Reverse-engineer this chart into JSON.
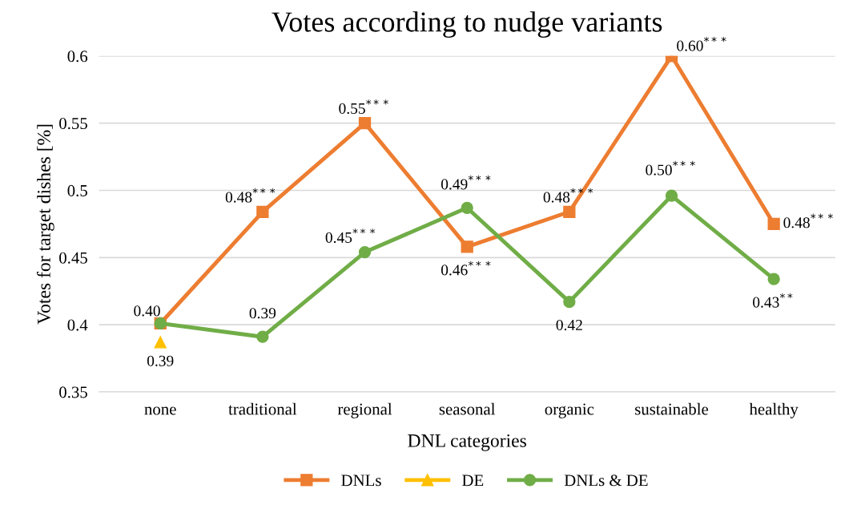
{
  "chart_data": {
    "type": "line",
    "title": "Votes according to nudge variants",
    "xlabel": "DNL categories",
    "ylabel": "Votes for target dishes [%]",
    "categories": [
      "none",
      "traditional",
      "regional",
      "seasonal",
      "organic",
      "sustainable",
      "healthy"
    ],
    "series": [
      {
        "name": "DNLs",
        "color": "#ed7d31",
        "marker": "square",
        "values": [
          0.401,
          0.484,
          0.55,
          0.458,
          0.484,
          0.6,
          0.475
        ],
        "value_labels": [
          "0.40",
          "0.48$^{***}$",
          "0.55$^{***}$",
          "0.46$^{***}$",
          "0.48$^{***}$",
          "0.60$^{***}$",
          "0.48$^{***}$"
        ]
      },
      {
        "name": "DE",
        "color": "#ffc000",
        "marker": "triangle",
        "values": [
          0.387,
          null,
          null,
          null,
          null,
          null,
          null
        ],
        "value_labels": [
          "0.39",
          null,
          null,
          null,
          null,
          null,
          null
        ]
      },
      {
        "name": "DNLs & DE",
        "color": "#70ad47",
        "marker": "circle",
        "values": [
          0.401,
          0.391,
          0.454,
          0.487,
          0.417,
          0.496,
          0.434
        ],
        "value_labels": [
          null,
          "0.39",
          "0.45$^{***}$",
          "0.49$^{***}$",
          "0.42",
          "0.50$^{***}$",
          "0.43$^{**}$"
        ]
      }
    ],
    "ylim": [
      0.35,
      0.6
    ],
    "yticks": [
      0.35,
      0.4,
      0.45,
      0.5,
      0.55,
      0.6
    ],
    "grid": "y",
    "legend": "bottom"
  }
}
